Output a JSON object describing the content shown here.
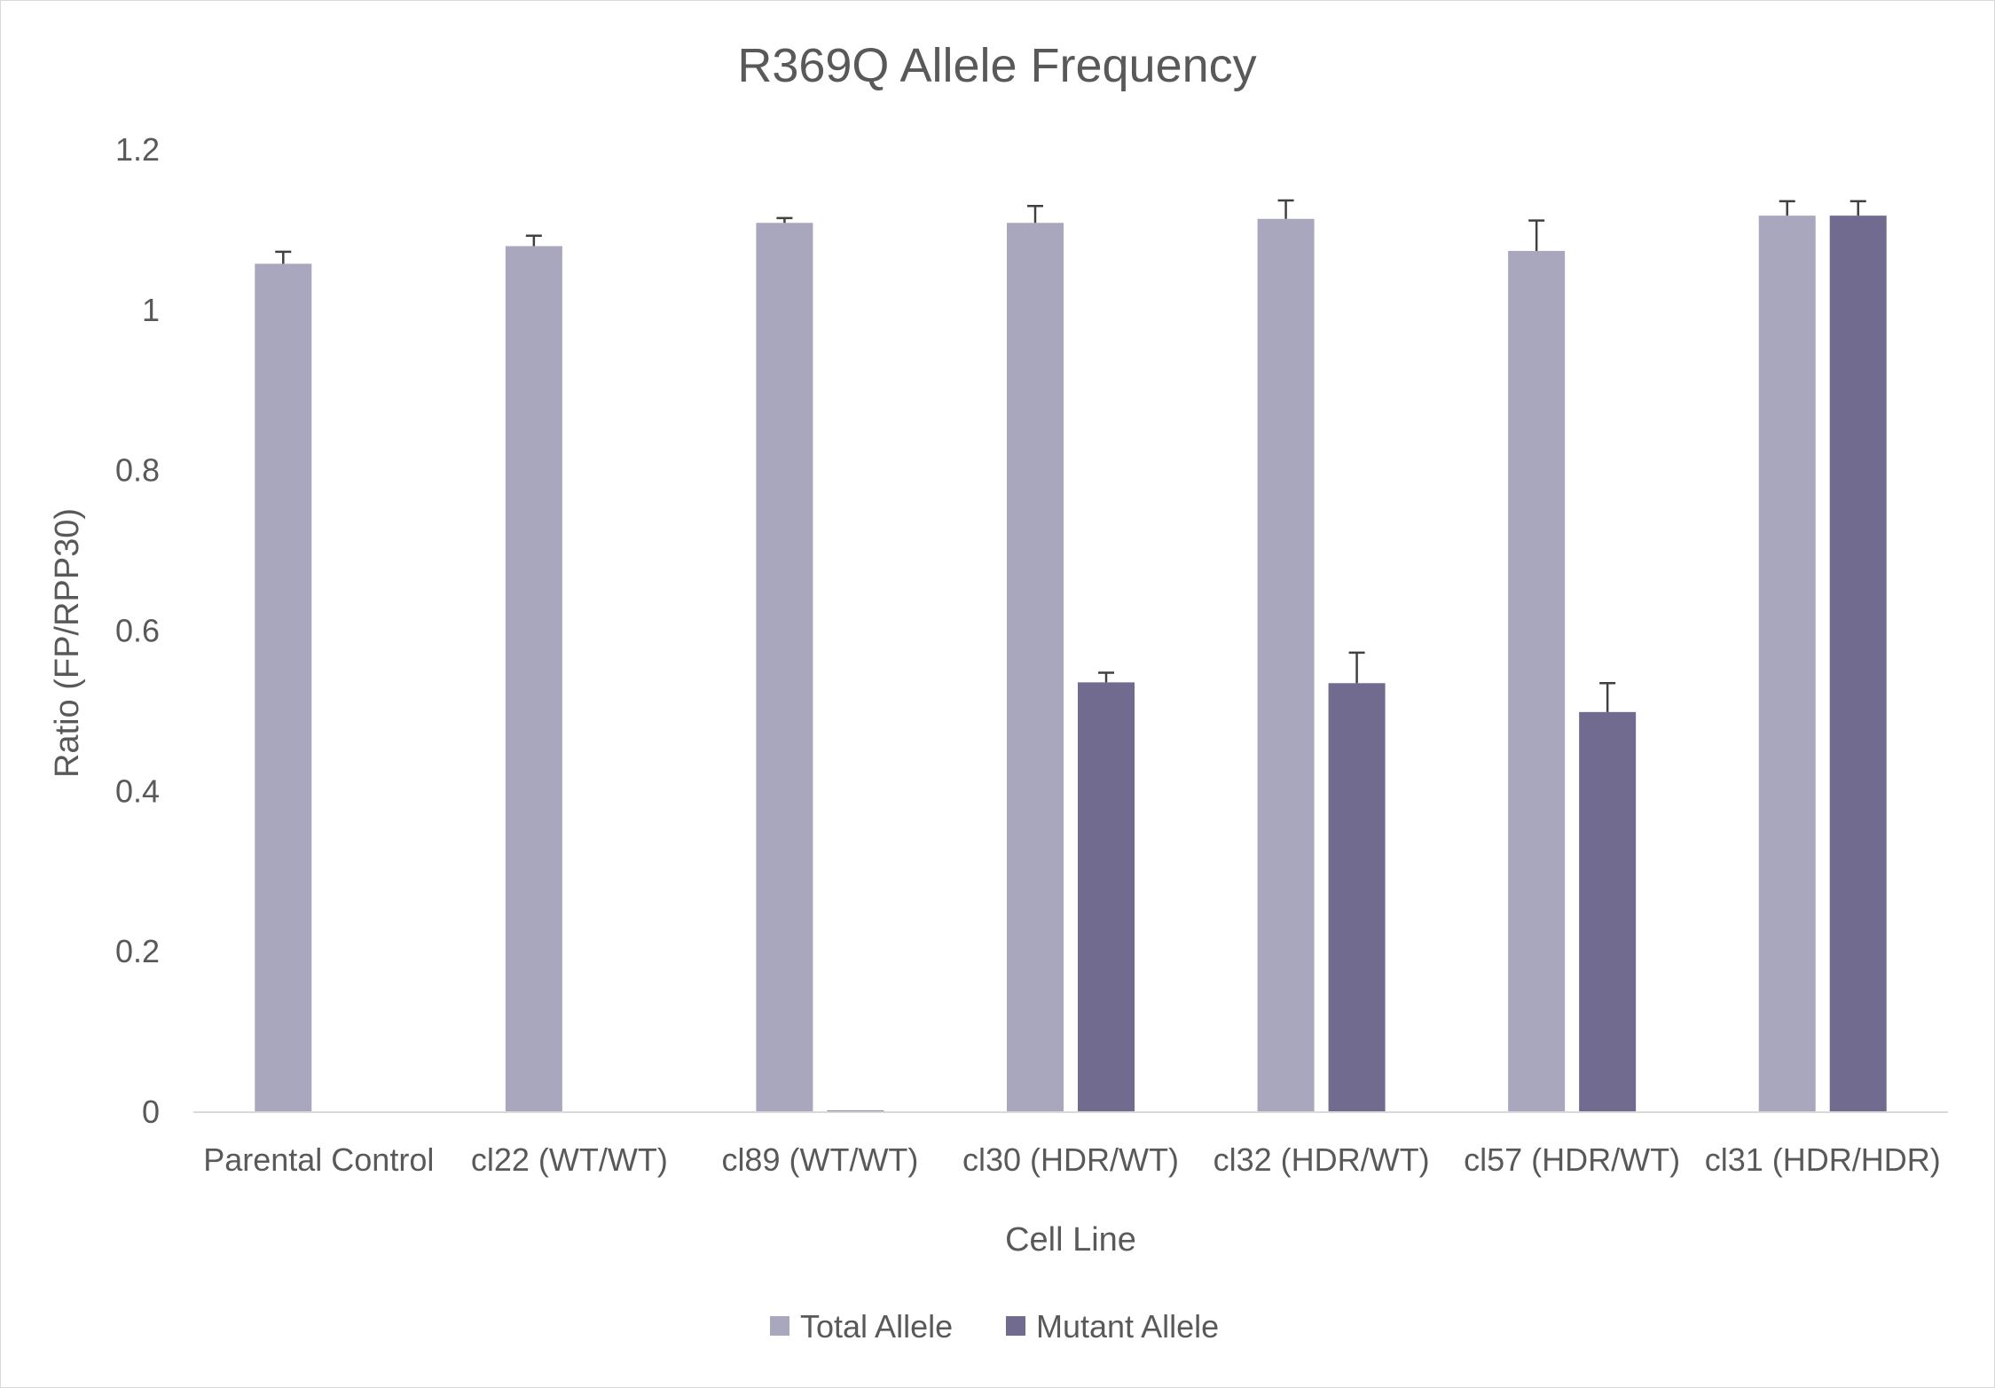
{
  "chart_data": {
    "type": "bar",
    "title": "R369Q Allele Frequency",
    "xlabel": "Cell Line",
    "ylabel": "Ratio (FP/RPP30)",
    "ylim": [
      0,
      1.2
    ],
    "yticks": [
      0,
      0.2,
      0.4,
      0.6,
      0.8,
      1,
      1.2
    ],
    "ytick_labels": [
      "0",
      "0.2",
      "0.4",
      "0.6",
      "0.8",
      "1",
      "1.2"
    ],
    "grid": false,
    "legend_position": "bottom",
    "categories": [
      "Parental Control",
      "cl22 (WT/WT)",
      "cl89 (WT/WT)",
      "cl30 (HDR/WT)",
      "cl32 (HDR/WT)",
      "cl57 (HDR/WT)",
      "cl31 (HDR/HDR)"
    ],
    "series": [
      {
        "name": "Total Allele",
        "color": "#a9a7be",
        "values": [
          1.058,
          1.08,
          1.109,
          1.109,
          1.114,
          1.074,
          1.118
        ],
        "errors": [
          0.015,
          0.013,
          0.006,
          0.021,
          0.023,
          0.038,
          0.018
        ]
      },
      {
        "name": "Mutant Allele",
        "color": "#716c8f",
        "values": [
          0.001,
          0.001,
          0.002,
          0.536,
          0.535,
          0.499,
          1.118
        ],
        "errors": [
          0.0,
          0.0,
          0.0,
          0.012,
          0.038,
          0.036,
          0.018
        ]
      }
    ],
    "axis_color": "#d9d9d9",
    "text_color": "#595959",
    "errorbar_color": "#404040"
  }
}
